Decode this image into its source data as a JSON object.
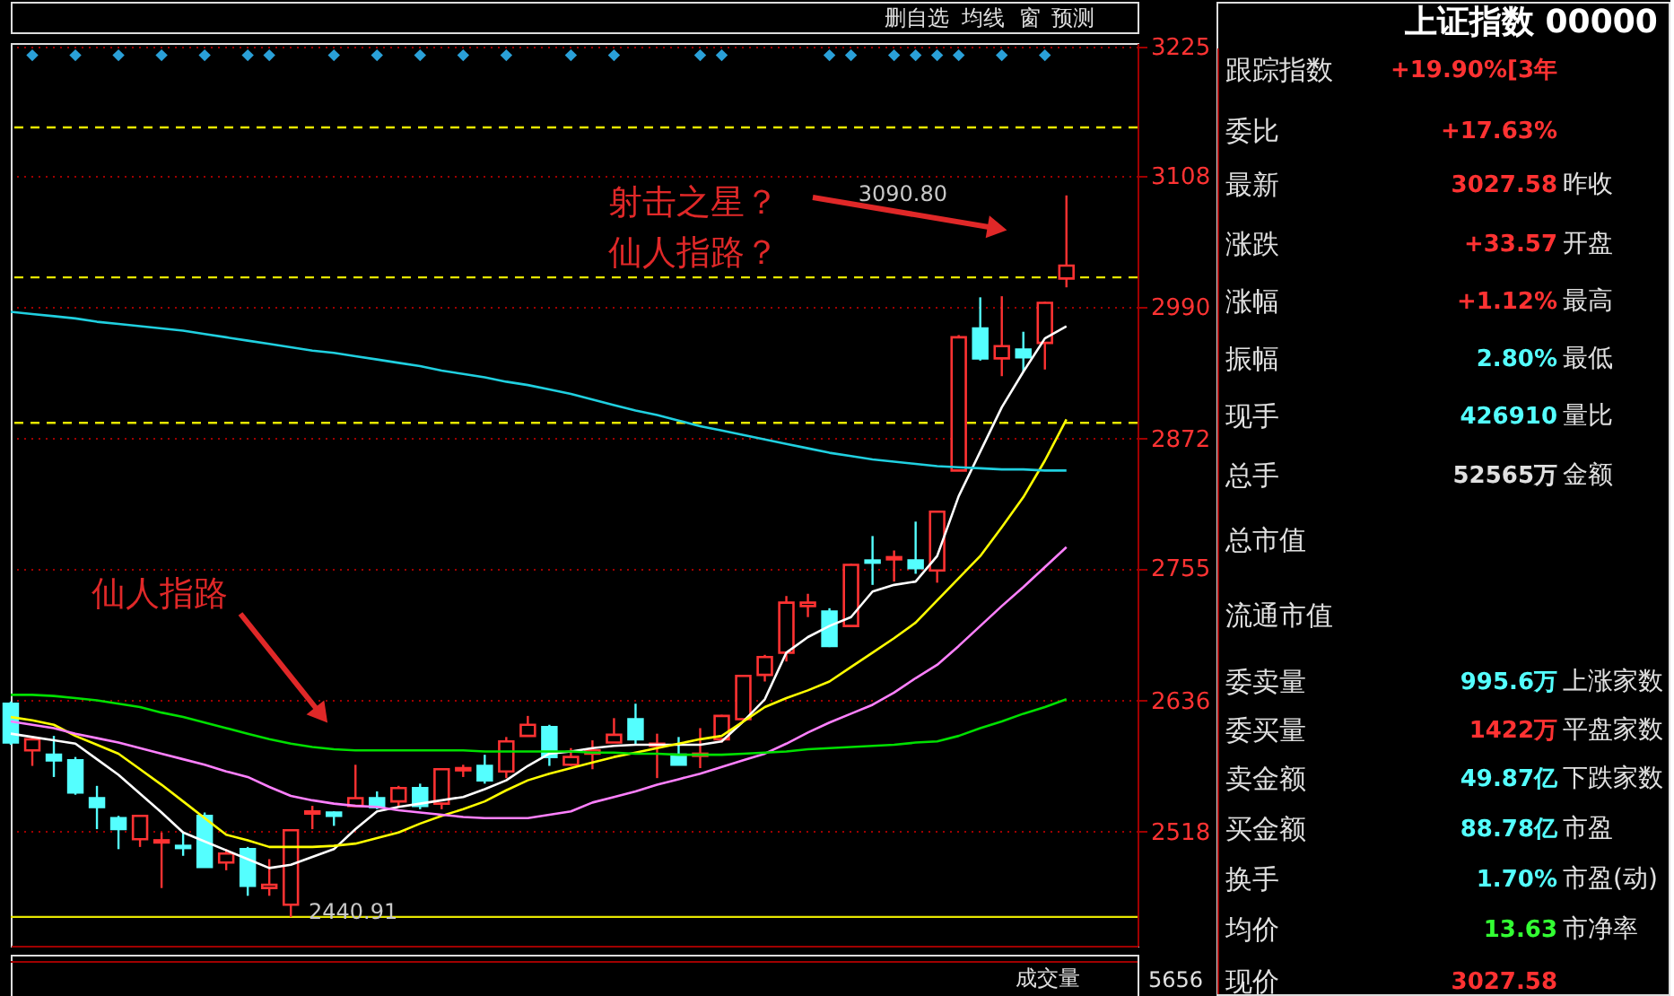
{
  "chart_data": [
    {
      "type": "candlestick",
      "categories": [
        null,
        null,
        null,
        null,
        null,
        null,
        null,
        null,
        null,
        null,
        null,
        null,
        null,
        null,
        null,
        null,
        null,
        null,
        null,
        null,
        null,
        null,
        null,
        null,
        null,
        null,
        null,
        null,
        null,
        null,
        null,
        null,
        null,
        null,
        null,
        null,
        null,
        null,
        null,
        null,
        null,
        null,
        null,
        null,
        null,
        null,
        null,
        null,
        null,
        null
      ],
      "ohlc": [
        [
          2633,
          2635,
          2596,
          2598
        ],
        [
          2591,
          2604,
          2577,
          2601
        ],
        [
          2587,
          2604,
          2567,
          2582
        ],
        [
          2582,
          2585,
          2551,
          2553
        ],
        [
          2548,
          2559,
          2520,
          2540
        ],
        [
          2530,
          2532,
          2502,
          2520
        ],
        [
          2511,
          2533,
          2504,
          2532
        ],
        [
          2508,
          2517,
          2467,
          2510
        ],
        [
          2505,
          2517,
          2496,
          2503
        ],
        [
          2532,
          2535,
          2486,
          2486
        ],
        [
          2490,
          2502,
          2483,
          2498
        ],
        [
          2502,
          2504,
          2460,
          2469
        ],
        [
          2467,
          2493,
          2460,
          2470
        ],
        [
          2452,
          2519,
          2440.91,
          2519
        ],
        [
          2534,
          2541,
          2520,
          2536
        ],
        [
          2535,
          2536,
          2523,
          2532
        ],
        [
          2541,
          2578,
          2541,
          2548
        ],
        [
          2548,
          2554,
          2538,
          2540
        ],
        [
          2545,
          2559,
          2540,
          2557
        ],
        [
          2557,
          2561,
          2538,
          2541
        ],
        [
          2543,
          2575,
          2538,
          2574
        ],
        [
          2573,
          2578,
          2567,
          2575
        ],
        [
          2577,
          2587,
          2561,
          2564
        ],
        [
          2572,
          2603,
          2566,
          2599
        ],
        [
          2604,
          2622,
          2604,
          2614
        ],
        [
          2612,
          2614,
          2577,
          2585
        ],
        [
          2578,
          2593,
          2577,
          2585
        ],
        [
          2588,
          2600,
          2574,
          2591
        ],
        [
          2598,
          2620,
          2598,
          2605
        ],
        [
          2619,
          2633,
          2596,
          2601
        ],
        [
          2595,
          2606,
          2566,
          2597
        ],
        [
          2587,
          2603,
          2578,
          2578
        ],
        [
          2586,
          2611,
          2575,
          2588
        ],
        [
          2601,
          2623,
          2598,
          2622
        ],
        [
          2619,
          2659,
          2618,
          2658
        ],
        [
          2659,
          2677,
          2653,
          2675
        ],
        [
          2679,
          2730,
          2671,
          2724
        ],
        [
          2721,
          2732,
          2711,
          2724
        ],
        [
          2716,
          2719,
          2684,
          2685
        ],
        [
          2703,
          2759,
          2702,
          2758
        ],
        [
          2762,
          2784,
          2740,
          2760
        ],
        [
          2763,
          2771,
          2743,
          2765
        ],
        [
          2762,
          2797,
          2750,
          2755
        ],
        [
          2753,
          2806,
          2742,
          2806
        ],
        [
          2843,
          2965,
          2843,
          2963
        ],
        [
          2971,
          2999,
          2942,
          2944
        ],
        [
          2944,
          3000,
          2928,
          2955
        ],
        [
          2952,
          2968,
          2932,
          2945
        ],
        [
          2958,
          2995,
          2934,
          2994
        ],
        [
          3016,
          3090.8,
          3008,
          3027.58
        ]
      ],
      "colors": [
        "#54ffff",
        "#ff3232",
        "#54ffff",
        "#54ffff",
        "#54ffff",
        "#54ffff",
        "#ff3232",
        "#ff3232",
        "#54ffff",
        "#54ffff",
        "#ff3232",
        "#54ffff",
        "#ff3232",
        "#ff3232",
        "#ff3232",
        "#54ffff",
        "#ff3232",
        "#54ffff",
        "#ff3232",
        "#54ffff",
        "#ff3232",
        "#ff3232",
        "#54ffff",
        "#ff3232",
        "#ff3232",
        "#54ffff",
        "#ff3232",
        "#ff3232",
        "#ff3232",
        "#54ffff",
        "#ff3232",
        "#54ffff",
        "#ff3232",
        "#ff3232",
        "#ff3232",
        "#ff3232",
        "#ff3232",
        "#ff3232",
        "#54ffff",
        "#ff3232",
        "#54ffff",
        "#ff3232",
        "#54ffff",
        "#ff3232",
        "#ff3232",
        "#54ffff",
        "#ff3232",
        "#54ffff",
        "#ff3232",
        "#ff3232"
      ],
      "series": [
        {
          "type": "line",
          "color": "#ffffff",
          "values": [
            2606,
            2603,
            2600,
            2597,
            2583,
            2569,
            2552,
            2535,
            2517,
            2509,
            2501,
            2493,
            2485,
            2488,
            2495,
            2502,
            2520,
            2536,
            2540,
            2543,
            2546,
            2549,
            2556,
            2564,
            2577,
            2588,
            2590,
            2593,
            2595,
            2596,
            2596,
            2596,
            2596,
            2599,
            2617,
            2637,
            2679,
            2693,
            2703,
            2711,
            2734,
            2740,
            2743,
            2766,
            2820,
            2860,
            2900,
            2932,
            2962,
            2973
          ]
        },
        {
          "type": "line",
          "color": "#ffff00",
          "values": [
            2621,
            2618,
            2614,
            2604,
            2596,
            2588,
            2574,
            2560,
            2545,
            2530,
            2515,
            2510,
            2504,
            2504,
            2504,
            2505,
            2507,
            2512,
            2517,
            2525,
            2532,
            2538,
            2545,
            2555,
            2564,
            2570,
            2575,
            2580,
            2585,
            2589,
            2593,
            2597,
            2601,
            2604,
            2617,
            2630,
            2638,
            2645,
            2653,
            2666,
            2679,
            2692,
            2706,
            2726,
            2746,
            2766,
            2792,
            2819,
            2852,
            2889
          ]
        },
        {
          "type": "line",
          "color": "#ff80ff",
          "values": [
            2617,
            2614,
            2611,
            2606,
            2602,
            2598,
            2593,
            2588,
            2583,
            2578,
            2572,
            2567,
            2558,
            2550,
            2546,
            2543,
            2541,
            2540,
            2537,
            2535,
            2533,
            2531,
            2530,
            2530,
            2530,
            2533,
            2536,
            2544,
            2549,
            2554,
            2560,
            2565,
            2570,
            2576,
            2582,
            2588,
            2597,
            2607,
            2616,
            2624,
            2632,
            2643,
            2656,
            2668,
            2685,
            2703,
            2721,
            2738,
            2756,
            2774
          ]
        },
        {
          "type": "line",
          "color": "#00e000",
          "values": [
            2641,
            2641,
            2640,
            2638,
            2636,
            2633,
            2630,
            2625,
            2621,
            2616,
            2611,
            2606,
            2601,
            2597,
            2594,
            2592,
            2591,
            2591,
            2591,
            2591,
            2591,
            2591,
            2590,
            2590,
            2590,
            2590,
            2590,
            2589,
            2589,
            2588,
            2588,
            2587,
            2587,
            2587,
            2588,
            2589,
            2590,
            2592,
            2593,
            2594,
            2595,
            2596,
            2598,
            2599,
            2604,
            2611,
            2617,
            2624,
            2630,
            2637
          ]
        },
        {
          "type": "line",
          "color": "#20d0e0",
          "values": [
            2986,
            2984,
            2982,
            2980,
            2977,
            2975,
            2973,
            2971,
            2969,
            2966,
            2963,
            2960,
            2957,
            2954,
            2951,
            2949,
            2946,
            2943,
            2940,
            2937,
            2933,
            2930,
            2927,
            2923,
            2920,
            2916,
            2912,
            2907,
            2902,
            2897,
            2893,
            2888,
            2883,
            2879,
            2875,
            2871,
            2867,
            2863,
            2859,
            2856,
            2853,
            2851,
            2849,
            2847,
            2846,
            2845,
            2844,
            2844,
            2843,
            2843
          ]
        },
        {
          "type": "scatter",
          "marker": "diamond",
          "color": "#2aa0d8",
          "values": [
            null,
            3217,
            null,
            3217,
            null,
            3217,
            null,
            3217,
            null,
            3217,
            null,
            3217,
            3217,
            null,
            null,
            3217,
            null,
            3217,
            null,
            3217,
            null,
            3217,
            null,
            3217,
            null,
            null,
            3217,
            null,
            3217,
            null,
            null,
            null,
            3217,
            3217,
            null,
            null,
            null,
            null,
            3217,
            3217,
            null,
            3217,
            3217,
            3217,
            3217,
            null,
            3217,
            null,
            3217,
            null
          ]
        }
      ],
      "ylim": [
        2415,
        3228
      ],
      "yticks": [
        2518,
        2636,
        2755,
        2872,
        2990,
        3108,
        3225
      ],
      "ref_lines": [
        {
          "axis": "y",
          "value": 3152,
          "color": "#e6e600",
          "line_style": "dashed"
        },
        {
          "axis": "y",
          "value": 3017,
          "color": "#e6e600",
          "line_style": "dashed"
        },
        {
          "axis": "y",
          "value": 2886,
          "color": "#e6e600",
          "line_style": "dashed"
        },
        {
          "axis": "y",
          "value": 2441,
          "color": "#e6e600",
          "line_style": "solid"
        }
      ],
      "annotations": [
        "射击之星？仙人指路？",
        "仙人指路",
        "删自选",
        "均线",
        "窗",
        "预测",
        "成交量",
        "5656",
        "3090.80",
        "2440.91"
      ],
      "grid": "y",
      "tick_labels": "y"
    },
    {
      "type": "other",
      "title": "上证指数 00000",
      "annotations": [
        "跟踪指数",
        "+19.90%[3年",
        "委比",
        "+17.63%",
        "最新",
        "3027.58",
        "昨收",
        "涨跌",
        "+33.57",
        "开盘",
        "涨幅",
        "+1.12%",
        "最高",
        "振幅",
        "2.80%",
        "最低",
        "现手",
        "426910",
        "量比",
        "总手",
        "52565万",
        "金额",
        "总市值",
        "流通市值",
        "委卖量",
        "995.6万",
        "上涨家数",
        "委买量",
        "1422万",
        "平盘家数",
        "卖金额",
        "49.87亿",
        "下跌家数",
        "买金额",
        "88.78亿",
        "市盈",
        "换手",
        "1.70%",
        "市盈(动)",
        "均价",
        "13.63",
        "市净率",
        "现价",
        "3027.58"
      ]
    }
  ]
}
